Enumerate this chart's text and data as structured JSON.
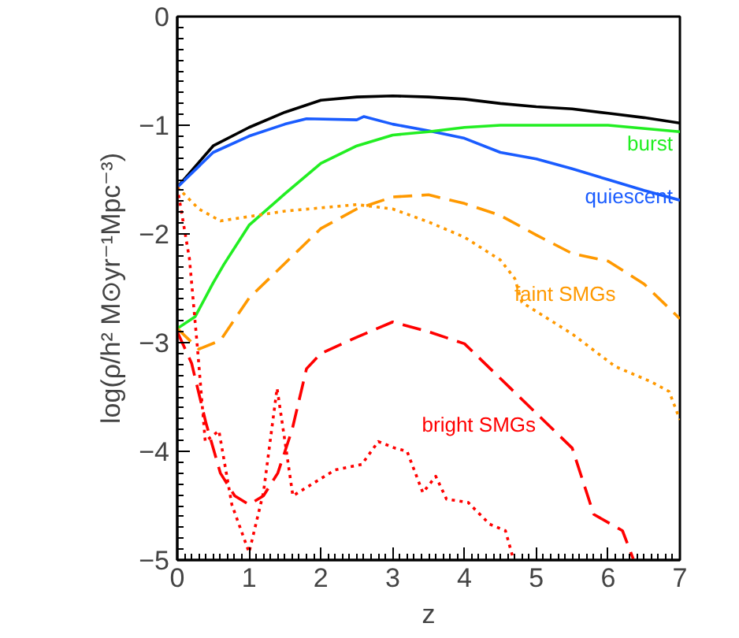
{
  "chart_data": {
    "type": "line",
    "xlabel": "z",
    "ylabel": "log(ρ/h² M⊙yr⁻¹Mpc⁻³)",
    "xlim": [
      0,
      7
    ],
    "ylim": [
      -5,
      0
    ],
    "xticks": [
      0,
      1,
      2,
      3,
      4,
      5,
      6,
      7
    ],
    "yticks": [
      -5,
      -4,
      -3,
      -2,
      -1,
      0
    ],
    "grid": false,
    "marker": "none",
    "series": [
      {
        "color": "#000000",
        "line_style": "solid",
        "x": [
          0,
          0.5,
          1,
          1.5,
          2,
          2.5,
          3,
          3.5,
          4,
          4.5,
          5,
          5.5,
          6,
          6.5,
          7
        ],
        "values": [
          -1.57,
          -1.19,
          -1.02,
          -0.88,
          -0.77,
          -0.74,
          -0.73,
          -0.74,
          -0.76,
          -0.8,
          -0.83,
          -0.85,
          -0.89,
          -0.93,
          -0.98
        ]
      },
      {
        "name": "quiescent",
        "color": "#1a5cff",
        "line_style": "solid",
        "x": [
          0,
          0.5,
          1,
          1.5,
          1.8,
          2.5,
          2.6,
          3,
          3.5,
          4,
          4.5,
          5,
          5.5,
          6,
          6.5,
          7
        ],
        "values": [
          -1.57,
          -1.25,
          -1.1,
          -0.99,
          -0.94,
          -0.95,
          -0.92,
          -0.99,
          -1.05,
          -1.12,
          -1.25,
          -1.31,
          -1.4,
          -1.5,
          -1.6,
          -1.69
        ]
      },
      {
        "name": "burst",
        "color": "#22ee22",
        "line_style": "solid",
        "x": [
          0,
          0.25,
          0.5,
          0.65,
          1,
          1.5,
          2,
          2.5,
          3,
          3.5,
          4,
          4.5,
          5,
          6,
          7
        ],
        "values": [
          -2.87,
          -2.76,
          -2.45,
          -2.28,
          -1.92,
          -1.63,
          -1.35,
          -1.19,
          -1.09,
          -1.06,
          -1.02,
          -1.0,
          -1.0,
          -1.0,
          -1.06
        ]
      },
      {
        "name": "faint SMGs",
        "color": "#ff9900",
        "line_style": "dashed",
        "x": [
          0,
          0.3,
          0.6,
          1,
          1.5,
          2,
          2.5,
          3,
          3.5,
          4,
          4.5,
          5,
          5.5,
          6,
          6.5,
          7
        ],
        "values": [
          -2.87,
          -3.06,
          -2.98,
          -2.59,
          -2.27,
          -1.95,
          -1.77,
          -1.66,
          -1.64,
          -1.72,
          -1.83,
          -2.01,
          -2.18,
          -2.25,
          -2.46,
          -2.78
        ]
      },
      {
        "color": "#ff9900",
        "line_style": "dotted",
        "x": [
          0,
          0.3,
          0.6,
          1,
          1.5,
          2,
          2.5,
          3,
          3.5,
          4,
          4.5,
          4.7,
          4.8,
          5.5,
          6.1,
          6.6,
          6.85,
          7
        ],
        "values": [
          -1.57,
          -1.77,
          -1.88,
          -1.84,
          -1.79,
          -1.76,
          -1.73,
          -1.77,
          -1.89,
          -2.03,
          -2.24,
          -2.41,
          -2.63,
          -2.92,
          -3.22,
          -3.36,
          -3.45,
          -3.71
        ]
      },
      {
        "name": "bright SMGs",
        "color": "#ff0000",
        "line_style": "dashed",
        "x": [
          0,
          0.2,
          0.4,
          0.6,
          0.8,
          1,
          1.2,
          1.4,
          1.6,
          1.8,
          2,
          2.5,
          3,
          3.5,
          4,
          4.5,
          5,
          5.5,
          5.8,
          6.2,
          6.35
        ],
        "values": [
          -2.9,
          -3.19,
          -3.74,
          -4.2,
          -4.41,
          -4.49,
          -4.41,
          -4.2,
          -3.8,
          -3.24,
          -3.1,
          -2.95,
          -2.81,
          -2.9,
          -3.01,
          -3.33,
          -3.65,
          -3.97,
          -4.58,
          -4.73,
          -4.99
        ]
      },
      {
        "color": "#ff0000",
        "line_style": "dotted",
        "x": [
          0,
          0.17,
          0.28,
          0.39,
          0.58,
          0.76,
          1,
          1.2,
          1.39,
          1.5,
          1.61,
          1.83,
          2.2,
          2.57,
          2.8,
          3.03,
          3.2,
          3.42,
          3.6,
          3.75,
          4.05,
          4.35,
          4.57,
          4.68
        ],
        "values": [
          -1.57,
          -2.23,
          -3.04,
          -3.91,
          -3.81,
          -4.49,
          -4.93,
          -4.38,
          -3.42,
          -3.91,
          -4.41,
          -4.32,
          -4.17,
          -4.12,
          -3.91,
          -3.97,
          -4.0,
          -4.38,
          -4.23,
          -4.44,
          -4.47,
          -4.67,
          -4.73,
          -4.99
        ]
      }
    ]
  }
}
